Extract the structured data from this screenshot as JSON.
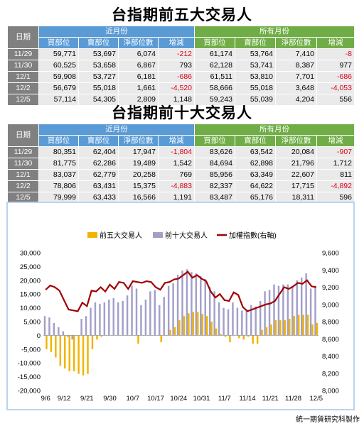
{
  "table1": {
    "title": "台指期前五大交易人",
    "date_label": "日期",
    "group_near": "近月份",
    "group_all": "所有月份",
    "subheaders": [
      "買部位",
      "賣部位",
      "淨部位數",
      "增減"
    ],
    "rows": [
      {
        "date": "11/29",
        "near": [
          "59,771",
          "53,697",
          "6,074",
          "-212"
        ],
        "all": [
          "61,174",
          "53,764",
          "7,410",
          "-8"
        ]
      },
      {
        "date": "11/30",
        "near": [
          "60,525",
          "53,658",
          "6,867",
          "793"
        ],
        "all": [
          "62,128",
          "53,741",
          "8,387",
          "977"
        ]
      },
      {
        "date": "12/1",
        "near": [
          "59,908",
          "53,727",
          "6,181",
          "-686"
        ],
        "all": [
          "61,511",
          "53,810",
          "7,701",
          "-686"
        ]
      },
      {
        "date": "12/2",
        "near": [
          "56,679",
          "55,018",
          "1,661",
          "-4,520"
        ],
        "all": [
          "58,666",
          "55,018",
          "3,648",
          "-4,053"
        ]
      },
      {
        "date": "12/5",
        "near": [
          "57,114",
          "54,305",
          "2,809",
          "1,148"
        ],
        "all": [
          "59,243",
          "55,039",
          "4,204",
          "556"
        ]
      }
    ]
  },
  "table2": {
    "title": "台指期前十大交易人",
    "date_label": "日期",
    "group_near": "近月份",
    "group_all": "所有月份",
    "subheaders": [
      "買部位",
      "賣部位",
      "淨部位數",
      "增減"
    ],
    "rows": [
      {
        "date": "11/29",
        "near": [
          "80,351",
          "62,404",
          "17,947",
          "-1,804"
        ],
        "all": [
          "83,626",
          "63,542",
          "20,084",
          "-907"
        ]
      },
      {
        "date": "11/30",
        "near": [
          "81,775",
          "62,286",
          "19,489",
          "1,542"
        ],
        "all": [
          "84,694",
          "62,898",
          "21,796",
          "1,712"
        ]
      },
      {
        "date": "12/1",
        "near": [
          "83,037",
          "62,779",
          "20,258",
          "769"
        ],
        "all": [
          "85,956",
          "63,349",
          "22,607",
          "811"
        ]
      },
      {
        "date": "12/2",
        "near": [
          "78,806",
          "63,431",
          "15,375",
          "-4,883"
        ],
        "all": [
          "82,337",
          "64,622",
          "17,715",
          "-4,892"
        ]
      },
      {
        "date": "12/5",
        "near": [
          "79,999",
          "63,433",
          "16,566",
          "1,191"
        ],
        "all": [
          "83,487",
          "65,176",
          "18,311",
          "596"
        ]
      }
    ]
  },
  "chart_data": {
    "type": "bar",
    "legend": [
      "前五大交易人",
      "前十大交易人",
      "加權指數(右軸)"
    ],
    "colors": {
      "top5": "#f0b400",
      "top10": "#a29fc9",
      "index": "#a00000"
    },
    "y_left": {
      "min": -20000,
      "max": 30000,
      "ticks": [
        "30,000",
        "25,000",
        "20,000",
        "15,000",
        "10,000",
        "5,000",
        "0",
        "-5,000",
        "-10,000",
        "-15,000",
        "-20,000"
      ]
    },
    "y_right": {
      "min": 8000,
      "max": 9600,
      "ticks": [
        "9,600",
        "9,400",
        "9,200",
        "9,000",
        "8,800",
        "8,600",
        "8,400",
        "8,200",
        "8,000"
      ]
    },
    "x_tick_labels": [
      "9/6",
      "9/12",
      "9/21",
      "9/30",
      "10/7",
      "10/17",
      "10/24",
      "10/31",
      "11/7",
      "11/14",
      "11/21",
      "11/28",
      "12/5"
    ],
    "x_tick_index": [
      0,
      4,
      9,
      14,
      19,
      24,
      29,
      34,
      39,
      44,
      49,
      54,
      59
    ],
    "series": [
      {
        "name": "前五大交易人",
        "axis": "left",
        "kind": "bar",
        "values": [
          -5000,
          -6000,
          -8000,
          -11000,
          -12000,
          -13000,
          -13000,
          -14000,
          -14500,
          -14000,
          -5000,
          -1500,
          -500,
          0,
          0,
          0,
          0,
          0,
          0,
          0,
          -3000,
          0,
          0,
          0,
          0,
          -2500,
          0,
          2000,
          3000,
          5500,
          7000,
          8000,
          8500,
          8500,
          7800,
          7000,
          5000,
          2500,
          500,
          -500,
          -2500,
          0,
          -1000,
          -1500,
          -500,
          -3000,
          -3000,
          2000,
          3000,
          4000,
          5500,
          5500,
          5500,
          6000,
          7000,
          7500,
          7500,
          7500,
          4000,
          4500
        ]
      },
      {
        "name": "前十大交易人",
        "axis": "left",
        "kind": "bar",
        "values": [
          7000,
          6500,
          4500,
          3000,
          1500,
          -500,
          -1500,
          0,
          6000,
          7000,
          10000,
          12000,
          11500,
          12000,
          13000,
          13500,
          12000,
          12500,
          14500,
          18000,
          17000,
          11000,
          13000,
          16000,
          16500,
          11000,
          14000,
          18000,
          19000,
          22000,
          23500,
          24000,
          23000,
          22500,
          21500,
          20500,
          17500,
          16000,
          12000,
          10000,
          9500,
          12000,
          10000,
          9000,
          9500,
          11000,
          10500,
          12500,
          16000,
          16500,
          18500,
          18000,
          18500,
          18500,
          18000,
          20000,
          21000,
          22500,
          17000,
          18000
        ]
      },
      {
        "name": "加權指數(右軸)",
        "axis": "right",
        "kind": "line",
        "values": [
          9170,
          9220,
          9200,
          9160,
          9050,
          8940,
          8930,
          8920,
          9020,
          8980,
          9160,
          9150,
          9200,
          9150,
          9230,
          9180,
          9260,
          9250,
          9180,
          9270,
          9260,
          9250,
          9270,
          9260,
          9200,
          9170,
          9250,
          9260,
          9290,
          9300,
          9340,
          9380,
          9310,
          9340,
          9300,
          9270,
          9150,
          9080,
          9120,
          9050,
          9040,
          9140,
          9110,
          8970,
          8920,
          8940,
          8960,
          8980,
          9000,
          9010,
          9040,
          9120,
          9200,
          9180,
          9210,
          9250,
          9240,
          9280,
          9210,
          9200
        ]
      }
    ]
  },
  "footer": "統一期貨研究科製作"
}
